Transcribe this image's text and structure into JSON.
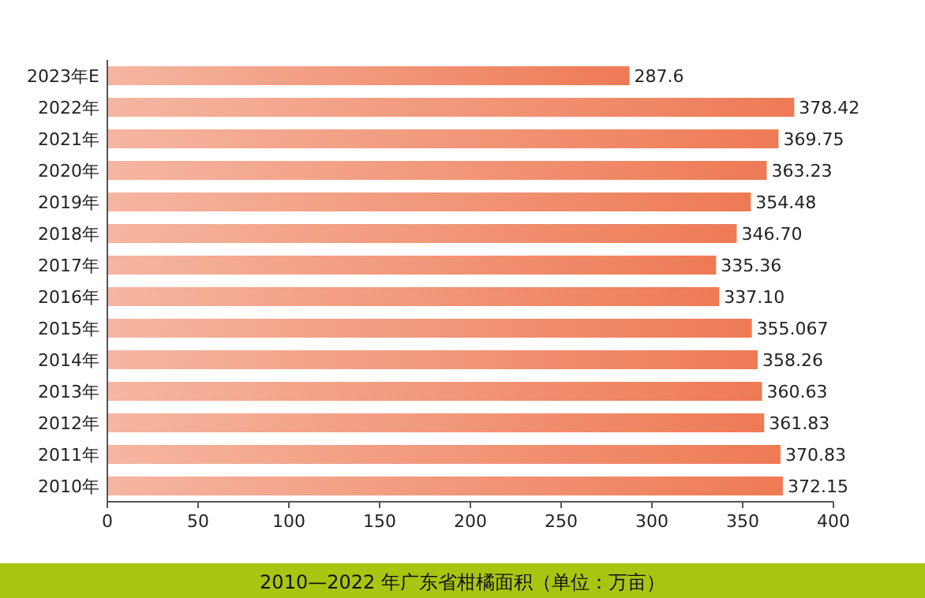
{
  "chart_data": {
    "type": "bar",
    "orientation": "horizontal",
    "title": "2010—2022 年广东省柑橘面积（单位：万亩）",
    "categories": [
      "2023年E",
      "2022年",
      "2021年",
      "2020年",
      "2019年",
      "2018年",
      "2017年",
      "2016年",
      "2015年",
      "2014年",
      "2013年",
      "2012年",
      "2011年",
      "2010年"
    ],
    "values": [
      287.6,
      378.42,
      369.75,
      363.23,
      354.48,
      346.7,
      335.36,
      337.1,
      355.067,
      358.26,
      360.63,
      361.83,
      370.83,
      372.15
    ],
    "value_labels": [
      "287.6",
      "378.42",
      "369.75",
      "363.23",
      "354.48",
      "346.70",
      "335.36",
      "337.10",
      "355.067",
      "358.26",
      "360.63",
      "361.83",
      "370.83",
      "372.15"
    ],
    "color": "#ee7a55",
    "xlim": [
      0,
      400
    ],
    "xticks": [
      0,
      50,
      100,
      150,
      200,
      250,
      300,
      350,
      400
    ],
    "grid": false
  }
}
